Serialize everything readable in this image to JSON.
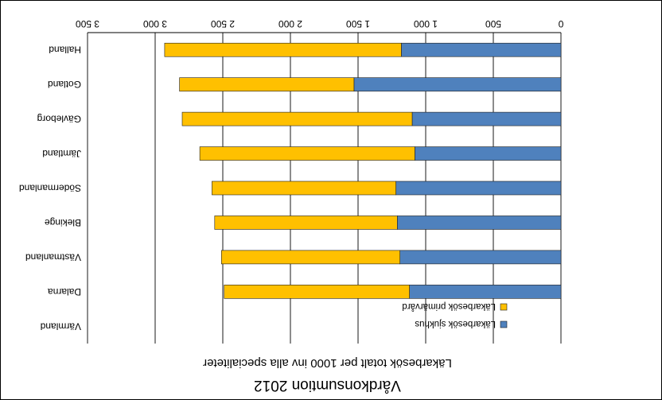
{
  "chart_data": {
    "type": "bar",
    "orientation": "horizontal",
    "stacked": true,
    "rendered_rotated_180": true,
    "title": "Vårdkonsumtion 2012",
    "xlabel": "Läkarbesök  totalt  per 1000 inv alla specialiteter",
    "ylabel": "",
    "xlim": [
      0,
      3500
    ],
    "x_ticks": [
      0,
      500,
      1000,
      1500,
      2000,
      2500,
      3000,
      3500
    ],
    "x_tick_labels": [
      "0",
      "500",
      "1 000",
      "1 500",
      "2 000",
      "2 500",
      "3 000",
      "3 500"
    ],
    "grid": true,
    "legend_position": "bottom-right",
    "categories": [
      "Halland",
      "Gotland",
      "Gävleborg",
      "Jämtland",
      "Södermanland",
      "Blekinge",
      "Västmanland",
      "Dalarna",
      "Värmland"
    ],
    "series": [
      {
        "name": "Läkarbesök sjukhus",
        "color": "#4f81bd",
        "values": [
          1180,
          1530,
          1100,
          1080,
          1220,
          1210,
          1190,
          1120,
          0
        ]
      },
      {
        "name": "Läkarbesök primärvård",
        "color": "#ffc000",
        "values": [
          1750,
          1290,
          1700,
          1590,
          1360,
          1350,
          1320,
          1370,
          0
        ]
      }
    ]
  }
}
